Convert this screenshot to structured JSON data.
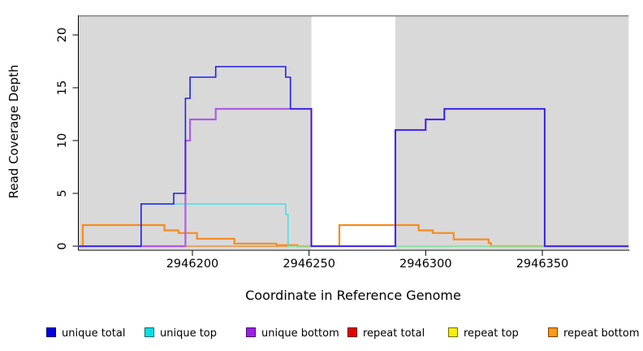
{
  "chart_data": {
    "type": "line",
    "subtype": "step-coverage",
    "title": "",
    "xlabel": "Coordinate in Reference Genome",
    "ylabel": "Read Coverage Depth",
    "xlim": [
      2946151,
      2946387
    ],
    "ylim": [
      0,
      22
    ],
    "grid": false,
    "legend_position": "bottom",
    "panel_background": "#d9d9d9",
    "panel_top_border_color": "#8c8c8c",
    "gap_region": {
      "start": 2946251,
      "end": 2946287,
      "color": "#ffffff"
    },
    "x_ticks": [
      2946200,
      2946250,
      2946300,
      2946350
    ],
    "x_tick_labels": [
      "2946200",
      "2946250",
      "2946300",
      "2946350"
    ],
    "y_ticks": [
      0,
      5,
      10,
      15,
      20
    ],
    "y_tick_labels": [
      "0",
      "5",
      "10",
      "15",
      "20"
    ],
    "draw_order": [
      "repeat total",
      "repeat bottom",
      "unique top",
      "repeat top",
      "unique bottom",
      "unique total"
    ],
    "series": [
      {
        "name": "unique total",
        "color": "#2020e8",
        "width": 1.6,
        "opacity": 1,
        "points": [
          [
            2946151,
            0
          ],
          [
            2946178,
            4
          ],
          [
            2946192,
            5
          ],
          [
            2946197,
            14
          ],
          [
            2946199,
            16
          ],
          [
            2946210,
            17
          ],
          [
            2946240,
            16
          ],
          [
            2946242,
            13
          ],
          [
            2946251,
            0
          ],
          [
            2946287,
            11
          ],
          [
            2946300,
            12
          ],
          [
            2946308,
            13
          ],
          [
            2946351,
            0
          ],
          [
            2946387,
            0
          ]
        ]
      },
      {
        "name": "unique top",
        "color": "#3fe1e9",
        "width": 1.5,
        "opacity": 1,
        "points": [
          [
            2946151,
            0
          ],
          [
            2946178,
            4
          ],
          [
            2946240,
            3
          ],
          [
            2946241,
            0
          ],
          [
            2946387,
            0
          ]
        ]
      },
      {
        "name": "unique bottom",
        "color": "#af5be2",
        "width": 2.2,
        "opacity": 1,
        "points": [
          [
            2946151,
            0
          ],
          [
            2946197,
            10
          ],
          [
            2946199,
            12
          ],
          [
            2946210,
            13
          ],
          [
            2946251,
            0
          ],
          [
            2946287,
            11
          ],
          [
            2946300,
            12
          ],
          [
            2946308,
            13
          ],
          [
            2946351,
            0
          ],
          [
            2946387,
            0
          ]
        ]
      },
      {
        "name": "repeat total",
        "color": "#e01010",
        "width": 1.0,
        "opacity": 1,
        "points": [
          [
            2946151,
            0
          ],
          [
            2946387,
            0
          ]
        ]
      },
      {
        "name": "repeat top",
        "color": "#f0ea10",
        "width": 1.3,
        "opacity": 0.45,
        "points": [
          [
            2946151,
            0
          ],
          [
            2946387,
            0
          ]
        ]
      },
      {
        "name": "repeat bottom",
        "color": "#f68c1f",
        "width": 2.2,
        "opacity": 1,
        "points": [
          [
            2946151,
            0
          ],
          [
            2946153,
            2
          ],
          [
            2946188,
            1.5
          ],
          [
            2946194,
            1.25
          ],
          [
            2946202,
            0.7
          ],
          [
            2946218,
            0.25
          ],
          [
            2946236,
            0.1
          ],
          [
            2946245,
            0
          ],
          [
            2946263,
            2
          ],
          [
            2946297,
            1.5
          ],
          [
            2946303,
            1.25
          ],
          [
            2946312,
            0.65
          ],
          [
            2946327,
            0.3
          ],
          [
            2946328,
            0
          ],
          [
            2946387,
            0
          ]
        ]
      }
    ]
  },
  "legend": {
    "items": [
      {
        "label": "unique total",
        "color": "#0000e6"
      },
      {
        "label": "unique top",
        "color": "#00e0e8"
      },
      {
        "label": "unique bottom",
        "color": "#9a20e8"
      },
      {
        "label": "repeat total",
        "color": "#e60000"
      },
      {
        "label": "repeat top",
        "color": "#f5ef00"
      },
      {
        "label": "repeat bottom",
        "color": "#ff9912"
      }
    ]
  }
}
